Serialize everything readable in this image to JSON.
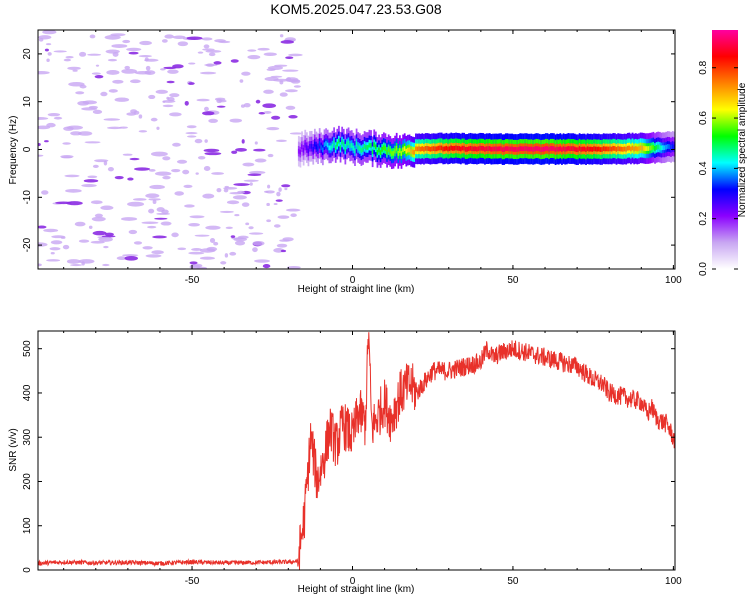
{
  "figure_title": "KOM5.2025.047.23.53.G08",
  "chart_data": [
    {
      "type": "heatmap",
      "xlabel": "Height of straight line (km)",
      "ylabel": "Frequency (Hz)",
      "xlim": [
        -98,
        100.5
      ],
      "ylim": [
        -25,
        25
      ],
      "xticks": [
        -50,
        0,
        50,
        100
      ],
      "yticks": [
        -20,
        -10,
        0,
        10,
        20
      ],
      "grid": false,
      "colorbar": {
        "label": "Normalized spectral amplitude",
        "range": [
          0,
          0.95
        ],
        "ticks": [
          "0.0",
          "0.2",
          "0.4",
          "0.6",
          "0.8"
        ],
        "tick_values": [
          0,
          0.2,
          0.4,
          0.6,
          0.8
        ],
        "colors": [
          "#ffffff",
          "#c8a6f2",
          "#8b00ff",
          "#0000ff",
          "#00ffff",
          "#00ff00",
          "#ffff00",
          "#ff8000",
          "#ff0000",
          "#ff00a0"
        ]
      },
      "noise_region": {
        "x": [
          -98,
          -17
        ],
        "amplitude": 0.1
      },
      "signal": [
        {
          "x": -17,
          "freq": 0.0,
          "amplitude": 0.2
        },
        {
          "x": -10,
          "freq": 0.6,
          "amplitude": 0.35
        },
        {
          "x": -5,
          "freq": 1.2,
          "amplitude": 0.5
        },
        {
          "x": 0,
          "freq": 0.5,
          "amplitude": 0.45
        },
        {
          "x": 5,
          "freq": 0.3,
          "amplitude": 0.5
        },
        {
          "x": 10,
          "freq": 0.0,
          "amplitude": 0.55
        },
        {
          "x": 15,
          "freq": -0.5,
          "amplitude": 0.6
        },
        {
          "x": 20,
          "freq": 0.2,
          "amplitude": 0.75
        },
        {
          "x": 30,
          "freq": 0.2,
          "amplitude": 0.85
        },
        {
          "x": 45,
          "freq": 0.1,
          "amplitude": 0.9
        },
        {
          "x": 60,
          "freq": 0.1,
          "amplitude": 0.92
        },
        {
          "x": 75,
          "freq": 0.1,
          "amplitude": 0.85
        },
        {
          "x": 90,
          "freq": 0.2,
          "amplitude": 0.7
        },
        {
          "x": 97,
          "freq": 0.5,
          "amplitude": 0.4
        },
        {
          "x": 100.5,
          "freq": 0.6,
          "amplitude": 0.3
        }
      ]
    },
    {
      "type": "line",
      "xlabel": "Height of straight line (km)",
      "ylabel": "SNR (v/v)",
      "xlim": [
        -98,
        100.5
      ],
      "ylim": [
        0,
        540
      ],
      "xticks": [
        -50,
        0,
        50,
        100
      ],
      "yticks": [
        0,
        100,
        200,
        300,
        400,
        500
      ],
      "grid": false,
      "color": "#e8312a",
      "series": [
        {
          "x": [
            -98,
            -90,
            -80,
            -70,
            -60,
            -50,
            -40,
            -30,
            -20,
            -17,
            -15,
            -13,
            -11,
            -9,
            -7,
            -5,
            -3,
            0,
            2,
            4,
            5,
            6,
            8,
            10,
            12,
            15,
            18,
            20,
            25,
            30,
            35,
            40,
            42,
            44,
            46,
            50,
            55,
            60,
            65,
            70,
            75,
            78,
            80,
            85,
            90,
            92,
            93,
            95,
            98,
            100.5
          ],
          "y": [
            15,
            18,
            16,
            17,
            15,
            18,
            16,
            17,
            18,
            20,
            120,
            300,
            200,
            250,
            320,
            280,
            330,
            300,
            360,
            330,
            540,
            320,
            350,
            380,
            340,
            400,
            420,
            400,
            450,
            450,
            460,
            470,
            500,
            480,
            490,
            500,
            490,
            480,
            470,
            460,
            430,
            420,
            400,
            390,
            380,
            350,
            370,
            340,
            330,
            290
          ]
        }
      ]
    }
  ]
}
